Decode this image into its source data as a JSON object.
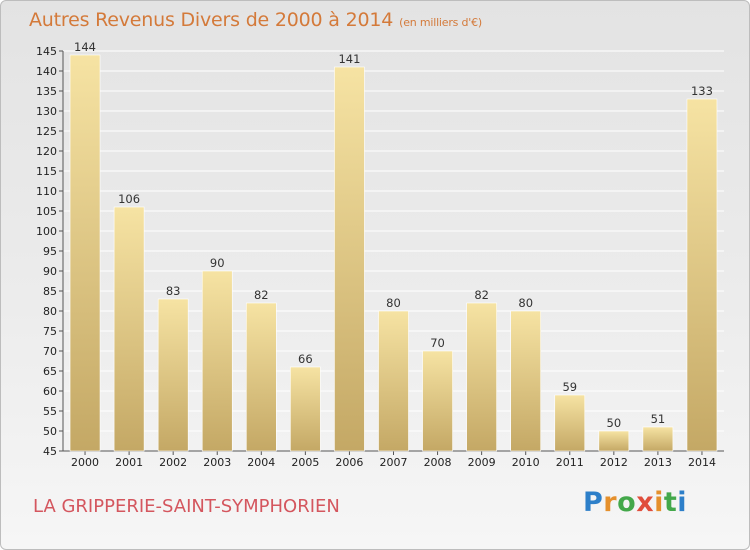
{
  "title": "Autres Revenus Divers de 2000 à 2014",
  "subtitle": "(en milliers d'€)",
  "place": "LA GRIPPERIE-SAINT-SYMPHORIEN",
  "logo": {
    "letters": [
      "P",
      "r",
      "o",
      "x",
      "i",
      "t",
      "i"
    ],
    "colors": [
      "#2d7fc9",
      "#e5902c",
      "#43a84a",
      "#e04e3c",
      "#e5902c",
      "#43a84a",
      "#2d7fc9"
    ]
  },
  "colors": {
    "bar_light": "#f6e3a3",
    "bar_dark": "#c4a865",
    "grid": "#ffffff",
    "title": "#d47a3a",
    "place": "#d4565e"
  },
  "chart_data": {
    "type": "bar",
    "categories": [
      "2000",
      "2001",
      "2002",
      "2003",
      "2004",
      "2005",
      "2006",
      "2007",
      "2008",
      "2009",
      "2010",
      "2011",
      "2012",
      "2013",
      "2014"
    ],
    "values": [
      144,
      106,
      83,
      90,
      82,
      66,
      141,
      80,
      70,
      82,
      80,
      59,
      50,
      51,
      133
    ],
    "ylim": [
      45,
      145
    ],
    "yticks": [
      45,
      50,
      55,
      60,
      65,
      70,
      75,
      80,
      85,
      90,
      95,
      100,
      105,
      110,
      115,
      120,
      125,
      130,
      135,
      140,
      145
    ],
    "grid": true,
    "xlabel": "",
    "ylabel": ""
  }
}
